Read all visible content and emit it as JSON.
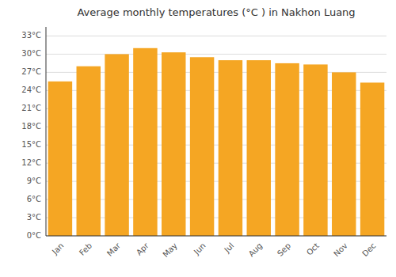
{
  "chart_data": {
    "type": "bar",
    "title": "Average monthly temperatures (°C ) in Nakhon Luang",
    "categories": [
      "Jan",
      "Feb",
      "Mar",
      "Apr",
      "May",
      "Jun",
      "Jul",
      "Aug",
      "Sep",
      "Oct",
      "Nov",
      "Dec"
    ],
    "values": [
      25.5,
      28.0,
      30.0,
      31.0,
      30.3,
      29.5,
      29.0,
      29.0,
      28.5,
      28.3,
      27.0,
      25.3
    ],
    "color": "#F5A623",
    "ylim": [
      0,
      34.5
    ],
    "yticks": [
      {
        "value": 0,
        "label": "0°C"
      },
      {
        "value": 3,
        "label": "3°C"
      },
      {
        "value": 6,
        "label": "6°C"
      },
      {
        "value": 9,
        "label": "9°C"
      },
      {
        "value": 12,
        "label": "12°C"
      },
      {
        "value": 15,
        "label": "15°C"
      },
      {
        "value": 18,
        "label": "18°C"
      },
      {
        "value": 21,
        "label": "21°C"
      },
      {
        "value": 24,
        "label": "24°C"
      },
      {
        "value": 27,
        "label": "27°C"
      },
      {
        "value": 30,
        "label": "30°C"
      },
      {
        "value": 33,
        "label": "33°C"
      }
    ],
    "grid": true
  }
}
